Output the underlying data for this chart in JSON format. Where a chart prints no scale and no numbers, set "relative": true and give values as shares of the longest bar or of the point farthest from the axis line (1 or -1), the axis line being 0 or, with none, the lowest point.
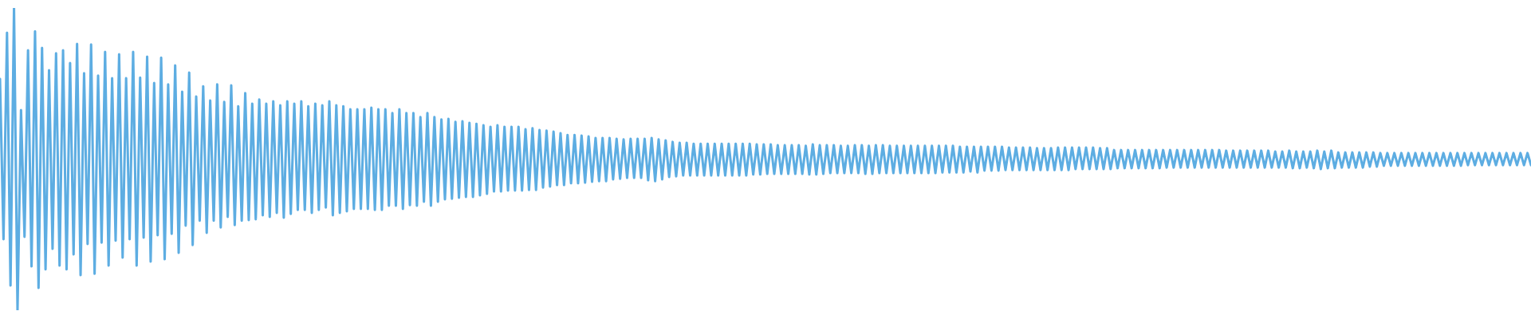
{
  "chart_data": {
    "type": "line",
    "relative": true,
    "categories": [
      null,
      null,
      null,
      null,
      null,
      null,
      null,
      null,
      null,
      null,
      null,
      null,
      null,
      null,
      null,
      null,
      null,
      null,
      null,
      null,
      null,
      null,
      null,
      null,
      null,
      null,
      null,
      null,
      null,
      null,
      null,
      null,
      null,
      null,
      null,
      null,
      null,
      null,
      null,
      null,
      null,
      null,
      null,
      null,
      null,
      null,
      null,
      null,
      null,
      null,
      null,
      null,
      null,
      null,
      null,
      null,
      null,
      null,
      null,
      null,
      null,
      null,
      null,
      null,
      null,
      null,
      null,
      null,
      null,
      null,
      null,
      null,
      null,
      null,
      null,
      null,
      null,
      null,
      null,
      null,
      null,
      null,
      null,
      null,
      null,
      null,
      null,
      null,
      null,
      null,
      null,
      null,
      null,
      null,
      null,
      null,
      null,
      null,
      null,
      null,
      null,
      null,
      null,
      null,
      null,
      null,
      null,
      null,
      null,
      null,
      null,
      null,
      null,
      null,
      null,
      null,
      null,
      null,
      null,
      null,
      null,
      null,
      null,
      null,
      null,
      null,
      null,
      null,
      null,
      null,
      null,
      null,
      null,
      null,
      null,
      null,
      null,
      null,
      null,
      null,
      null,
      null,
      null,
      null,
      null,
      null,
      null,
      null,
      null,
      null,
      null,
      null,
      null,
      null,
      null,
      null,
      null,
      null,
      null,
      null,
      null,
      null,
      null,
      null,
      null,
      null,
      null,
      null,
      null,
      null,
      null,
      null,
      null,
      null,
      null,
      null,
      null,
      null,
      null,
      null,
      null,
      null,
      null,
      null,
      null,
      null,
      null,
      null,
      null,
      null,
      null,
      null,
      null,
      null,
      null,
      null,
      null,
      null,
      null,
      null,
      null,
      null,
      null,
      null,
      null,
      null,
      null,
      null,
      null,
      null,
      null,
      null,
      null,
      null,
      null,
      null,
      null,
      null,
      null,
      null,
      null,
      null,
      null,
      null,
      null,
      null,
      null,
      null,
      null,
      null,
      null,
      null,
      null,
      null,
      null,
      null,
      null,
      null,
      null,
      null,
      null,
      null,
      null,
      null,
      null,
      null,
      null,
      null,
      null,
      null,
      null,
      null,
      null,
      null,
      null,
      null,
      null,
      null,
      null,
      null,
      null,
      null,
      null,
      null,
      null,
      null,
      null,
      null,
      null,
      null,
      null,
      null,
      null,
      null,
      null,
      null,
      null,
      null,
      null,
      null,
      null,
      null,
      null,
      null,
      null,
      null,
      null,
      null,
      null,
      null,
      null,
      null,
      null,
      null,
      null,
      null,
      null,
      null,
      null,
      null,
      null,
      null,
      null,
      null,
      null,
      null,
      null,
      null,
      null,
      null,
      null,
      null,
      null,
      null,
      null,
      null,
      null,
      null,
      null,
      null,
      null,
      null,
      null,
      null,
      null,
      null,
      null,
      null,
      null,
      null,
      null,
      null,
      null,
      null,
      null,
      null,
      null,
      null,
      null,
      null,
      null,
      null,
      null,
      null,
      null,
      null,
      null,
      null,
      null,
      null,
      null,
      null,
      null,
      null,
      null,
      null,
      null,
      null,
      null,
      null,
      null,
      null,
      null,
      null,
      null,
      null,
      null,
      null,
      null,
      null,
      null,
      null,
      null,
      null,
      null,
      null,
      null,
      null,
      null,
      null,
      null,
      null,
      null,
      null,
      null,
      null,
      null,
      null,
      null,
      null,
      null,
      null,
      null,
      null,
      null,
      null,
      null,
      null,
      null,
      null,
      null,
      null,
      null,
      null,
      null,
      null,
      null,
      null,
      null,
      null,
      null,
      null,
      null,
      null,
      null,
      null,
      null,
      null,
      null,
      null,
      null,
      null,
      null,
      null,
      null,
      null,
      null,
      null,
      null,
      null,
      null,
      null,
      null,
      null,
      null,
      null,
      null,
      null
    ],
    "series": [
      {
        "color": "#5dade2",
        "values": [
          0.765,
          0.235,
          0.918,
          0.082,
          1.0,
          0.0,
          0.662,
          0.243,
          0.86,
          0.145,
          0.923,
          0.074,
          0.868,
          0.135,
          0.794,
          0.203,
          0.85,
          0.148,
          0.86,
          0.135,
          0.818,
          0.185,
          0.881,
          0.116,
          0.784,
          0.219,
          0.879,
          0.121,
          0.776,
          0.224,
          0.855,
          0.148,
          0.768,
          0.23,
          0.847,
          0.174,
          0.768,
          0.235,
          0.855,
          0.148,
          0.77,
          0.24,
          0.839,
          0.161,
          0.752,
          0.248,
          0.836,
          0.169,
          0.747,
          0.253,
          0.81,
          0.19,
          0.723,
          0.28,
          0.786,
          0.216,
          0.707,
          0.296,
          0.741,
          0.256,
          0.694,
          0.296,
          0.747,
          0.274,
          0.689,
          0.309,
          0.744,
          0.282,
          0.675,
          0.296,
          0.718,
          0.298,
          0.683,
          0.301,
          0.697,
          0.314,
          0.683,
          0.309,
          0.691,
          0.322,
          0.678,
          0.306,
          0.691,
          0.319,
          0.683,
          0.332,
          0.691,
          0.332,
          0.675,
          0.322,
          0.683,
          0.332,
          0.678,
          0.34,
          0.691,
          0.314,
          0.678,
          0.322,
          0.675,
          0.327,
          0.665,
          0.335,
          0.665,
          0.335,
          0.665,
          0.335,
          0.67,
          0.332,
          0.665,
          0.332,
          0.665,
          0.346,
          0.652,
          0.346,
          0.665,
          0.335,
          0.652,
          0.348,
          0.652,
          0.346,
          0.639,
          0.359,
          0.652,
          0.346,
          0.639,
          0.359,
          0.631,
          0.367,
          0.633,
          0.369,
          0.623,
          0.372,
          0.625,
          0.375,
          0.62,
          0.375,
          0.617,
          0.38,
          0.612,
          0.385,
          0.607,
          0.393,
          0.612,
          0.393,
          0.607,
          0.396,
          0.607,
          0.396,
          0.607,
          0.396,
          0.599,
          0.398,
          0.602,
          0.398,
          0.596,
          0.406,
          0.594,
          0.409,
          0.591,
          0.414,
          0.586,
          0.414,
          0.58,
          0.42,
          0.58,
          0.42,
          0.578,
          0.422,
          0.575,
          0.425,
          0.57,
          0.427,
          0.57,
          0.427,
          0.57,
          0.433,
          0.567,
          0.435,
          0.565,
          0.438,
          0.567,
          0.438,
          0.567,
          0.438,
          0.567,
          0.43,
          0.57,
          0.427,
          0.565,
          0.433,
          0.562,
          0.441,
          0.557,
          0.443,
          0.554,
          0.446,
          0.554,
          0.446,
          0.551,
          0.446,
          0.551,
          0.446,
          0.551,
          0.446,
          0.551,
          0.446,
          0.551,
          0.446,
          0.551,
          0.446,
          0.551,
          0.446,
          0.551,
          0.446,
          0.551,
          0.449,
          0.549,
          0.449,
          0.549,
          0.451,
          0.549,
          0.451,
          0.546,
          0.451,
          0.546,
          0.451,
          0.546,
          0.451,
          0.546,
          0.451,
          0.544,
          0.449,
          0.549,
          0.449,
          0.546,
          0.451,
          0.546,
          0.454,
          0.546,
          0.454,
          0.544,
          0.454,
          0.544,
          0.454,
          0.546,
          0.454,
          0.546,
          0.451,
          0.544,
          0.451,
          0.546,
          0.454,
          0.546,
          0.454,
          0.544,
          0.454,
          0.544,
          0.454,
          0.544,
          0.454,
          0.544,
          0.454,
          0.544,
          0.454,
          0.544,
          0.454,
          0.544,
          0.454,
          0.544,
          0.456,
          0.544,
          0.456,
          0.544,
          0.456,
          0.541,
          0.456,
          0.541,
          0.459,
          0.541,
          0.456,
          0.541,
          0.462,
          0.541,
          0.462,
          0.541,
          0.462,
          0.541,
          0.464,
          0.538,
          0.464,
          0.538,
          0.464,
          0.538,
          0.464,
          0.538,
          0.464,
          0.536,
          0.464,
          0.536,
          0.464,
          0.536,
          0.464,
          0.538,
          0.464,
          0.538,
          0.464,
          0.538,
          0.467,
          0.538,
          0.467,
          0.538,
          0.467,
          0.538,
          0.467,
          0.536,
          0.467,
          0.536,
          0.467,
          0.53,
          0.47,
          0.53,
          0.47,
          0.53,
          0.47,
          0.53,
          0.47,
          0.53,
          0.47,
          0.53,
          0.47,
          0.53,
          0.47,
          0.53,
          0.472,
          0.53,
          0.472,
          0.53,
          0.472,
          0.53,
          0.472,
          0.53,
          0.472,
          0.53,
          0.472,
          0.53,
          0.472,
          0.53,
          0.472,
          0.53,
          0.472,
          0.528,
          0.472,
          0.528,
          0.472,
          0.528,
          0.472,
          0.528,
          0.472,
          0.528,
          0.472,
          0.528,
          0.472,
          0.528,
          0.472,
          0.525,
          0.472,
          0.525,
          0.472,
          0.528,
          0.47,
          0.525,
          0.47,
          0.525,
          0.472,
          0.525,
          0.47,
          0.528,
          0.467,
          0.525,
          0.47,
          0.528,
          0.47,
          0.522,
          0.472,
          0.522,
          0.472,
          0.522,
          0.472,
          0.522,
          0.472,
          0.522,
          0.475,
          0.522,
          0.475,
          0.52,
          0.478,
          0.52,
          0.478,
          0.52,
          0.478,
          0.52,
          0.478,
          0.52,
          0.478,
          0.52,
          0.478,
          0.52,
          0.478,
          0.52,
          0.478,
          0.52,
          0.478,
          0.52,
          0.478,
          0.52,
          0.478,
          0.52,
          0.478,
          0.52,
          0.48,
          0.52,
          0.48,
          0.52,
          0.48,
          0.52,
          0.48,
          0.52,
          0.48,
          0.52,
          0.48,
          0.52,
          0.48,
          0.52,
          0.48,
          0.52,
          0.48,
          0.52,
          0.48
        ]
      }
    ]
  }
}
